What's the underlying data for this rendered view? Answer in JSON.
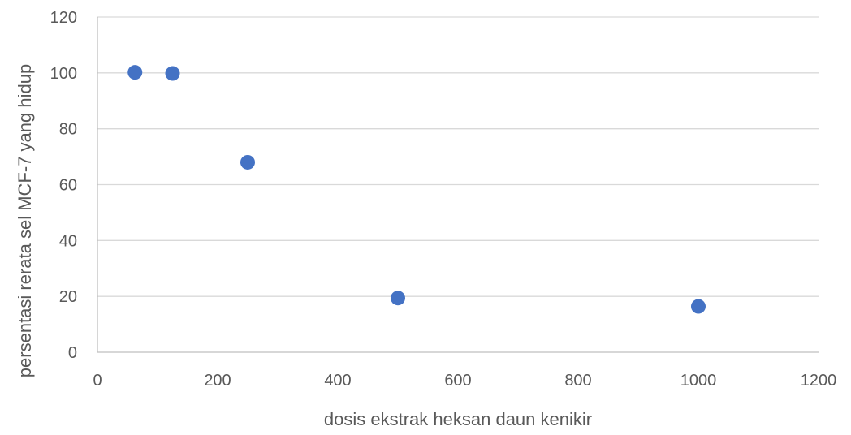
{
  "chart_data": {
    "type": "scatter",
    "title": "",
    "xlabel": "dosis ekstrak heksan daun kenikir",
    "ylabel": "persentasi rerata sel MCF-7 yang hidup",
    "xlim": [
      0,
      1200
    ],
    "ylim": [
      0,
      120
    ],
    "x_ticks": [
      "0",
      "200",
      "400",
      "600",
      "800",
      "1000",
      "1200"
    ],
    "y_ticks": [
      "0",
      "20",
      "40",
      "60",
      "80",
      "100",
      "120"
    ],
    "grid": "horizontal",
    "legend": "none",
    "series": [
      {
        "color": "#4472c4",
        "points": [
          {
            "x": 62.5,
            "y": 100.2
          },
          {
            "x": 125,
            "y": 99.8
          },
          {
            "x": 250,
            "y": 68
          },
          {
            "x": 500,
            "y": 19.4
          },
          {
            "x": 1000,
            "y": 16.4
          }
        ]
      }
    ]
  }
}
